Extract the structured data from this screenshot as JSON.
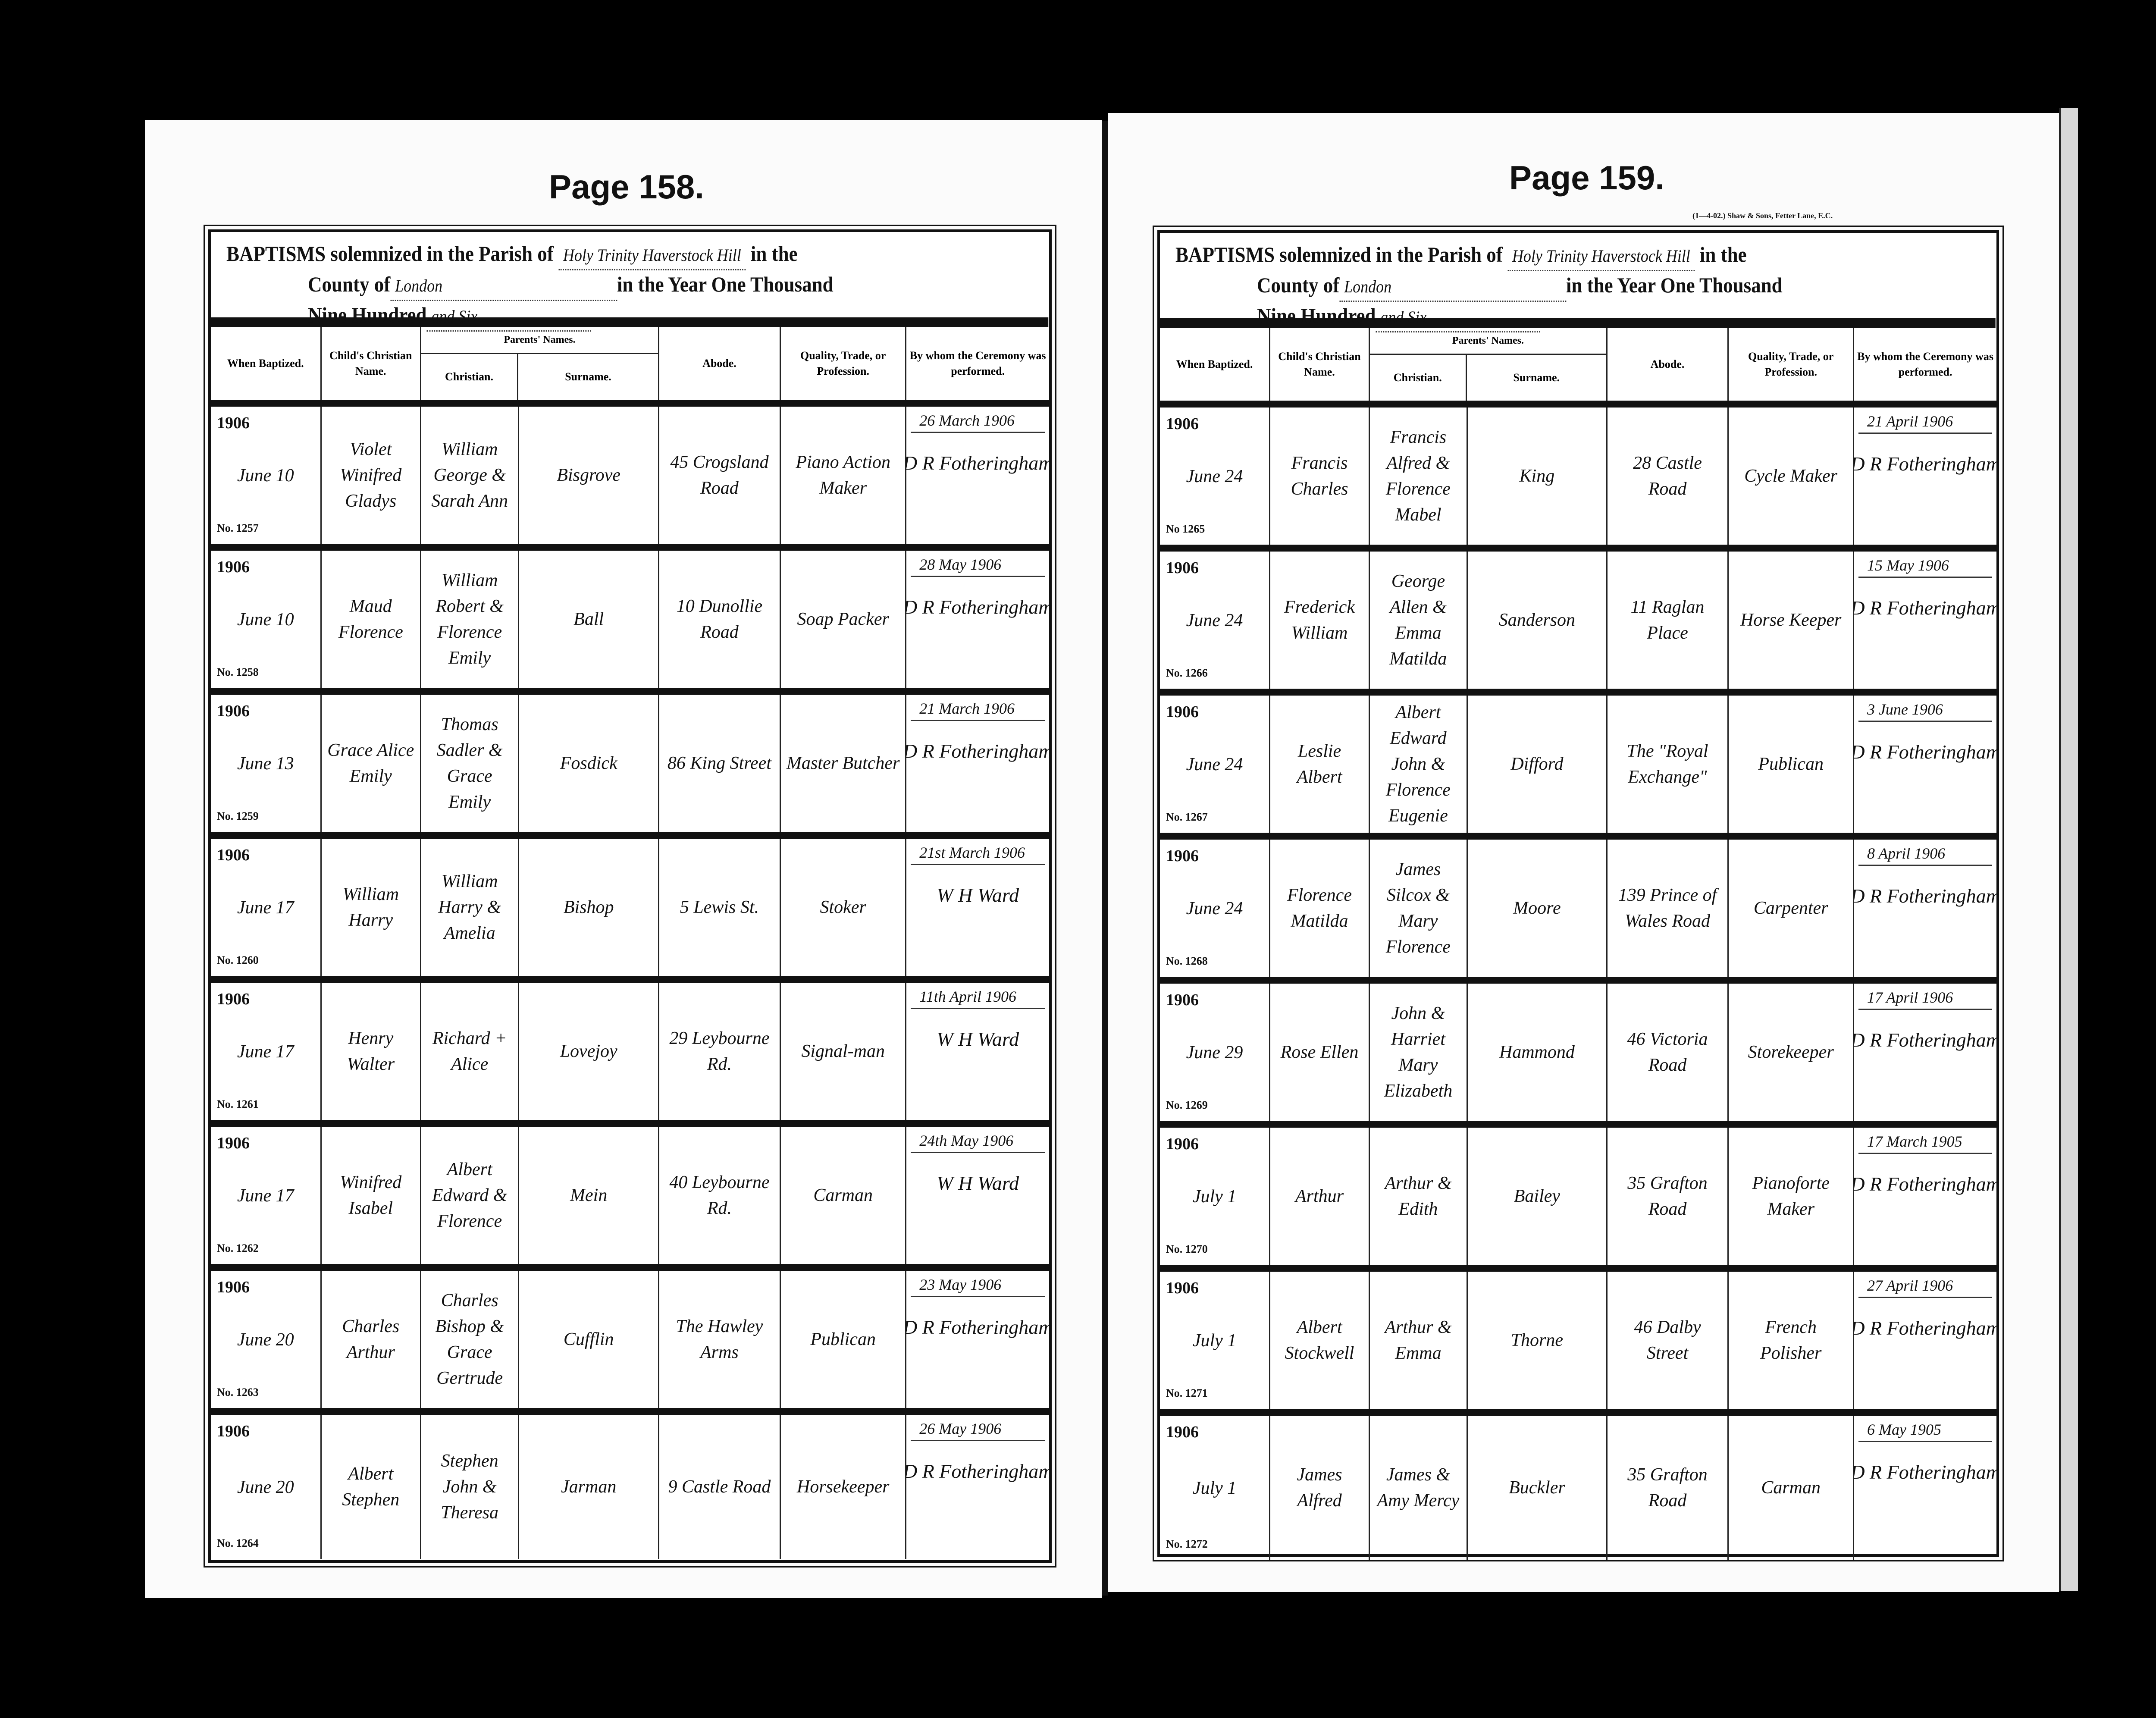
{
  "pages": [
    {
      "title": "Page 158.",
      "header": {
        "prefix": "BAPTISMS solemnized in the Parish of",
        "parish": "Holy Trinity Haverstock Hill",
        "in_the": "in the",
        "county_label": "County of",
        "county": "London",
        "year_label": "in the Year One Thousand",
        "nine_hundred": "Nine Hundred",
        "year": "and Six"
      },
      "columns": {
        "when": "When Baptized.",
        "child": "Child's Christian Name.",
        "parents": "Parents' Names.",
        "christian": "Christian.",
        "surname": "Surname.",
        "abode": "Abode.",
        "quality": "Quality, Trade, or Profession.",
        "by_whom": "By whom the Ceremony was performed."
      },
      "entries": [
        {
          "year": "1906",
          "date": "June 10",
          "no": "No. 1257",
          "child": "Violet Winifred Gladys",
          "parents_christian": "William George & Sarah Ann",
          "surname": "Bisgrove",
          "abode": "45 Crogsland Road",
          "profession": "Piano Action Maker",
          "cert_date": "26 March 1906",
          "minister": "D R Fotheringham"
        },
        {
          "year": "1906",
          "date": "June 10",
          "no": "No. 1258",
          "child": "Maud Florence",
          "parents_christian": "William Robert & Florence Emily",
          "surname": "Ball",
          "abode": "10 Dunollie Road",
          "profession": "Soap Packer",
          "cert_date": "28 May 1906",
          "minister": "D R Fotheringham"
        },
        {
          "year": "1906",
          "date": "June 13",
          "no": "No. 1259",
          "child": "Grace Alice Emily",
          "parents_christian": "Thomas Sadler & Grace Emily",
          "surname": "Fosdick",
          "abode": "86 King Street",
          "profession": "Master Butcher",
          "cert_date": "21 March 1906",
          "minister": "D R Fotheringham"
        },
        {
          "year": "1906",
          "date": "June 17",
          "no": "No. 1260",
          "child": "William Harry",
          "parents_christian": "William Harry & Amelia",
          "surname": "Bishop",
          "abode": "5 Lewis St.",
          "profession": "Stoker",
          "cert_date": "21st March 1906",
          "minister": "W H Ward"
        },
        {
          "year": "1906",
          "date": "June 17",
          "no": "No. 1261",
          "child": "Henry Walter",
          "parents_christian": "Richard + Alice",
          "surname": "Lovejoy",
          "abode": "29 Leybourne Rd.",
          "profession": "Signal-man",
          "cert_date": "11th April 1906",
          "minister": "W H Ward"
        },
        {
          "year": "1906",
          "date": "June 17",
          "no": "No. 1262",
          "child": "Winifred Isabel",
          "parents_christian": "Albert Edward & Florence",
          "surname": "Mein",
          "abode": "40 Leybourne Rd.",
          "profession": "Carman",
          "cert_date": "24th May 1906",
          "minister": "W H Ward"
        },
        {
          "year": "1906",
          "date": "June 20",
          "no": "No. 1263",
          "child": "Charles Arthur",
          "parents_christian": "Charles Bishop & Grace Gertrude",
          "surname": "Cufflin",
          "abode": "The Hawley Arms",
          "profession": "Publican",
          "cert_date": "23 May 1906",
          "minister": "D R Fotheringham"
        },
        {
          "year": "1906",
          "date": "June 20",
          "no": "No. 1264",
          "child": "Albert Stephen",
          "parents_christian": "Stephen John & Theresa",
          "surname": "Jarman",
          "abode": "9 Castle Road",
          "profession": "Horsekeeper",
          "cert_date": "26 May 1906",
          "minister": "D R Fotheringham"
        }
      ]
    },
    {
      "title": "Page 159.",
      "printer": "(1—4-02.) Shaw & Sons, Fetter Lane, E.C.",
      "header": {
        "prefix": "BAPTISMS solemnized in the Parish of",
        "parish": "Holy Trinity Haverstock Hill",
        "in_the": "in the",
        "county_label": "County of",
        "county": "London",
        "year_label": "in the Year One Thousand",
        "nine_hundred": "Nine Hundred",
        "year": "and Six"
      },
      "columns": {
        "when": "When Baptized.",
        "child": "Child's Christian Name.",
        "parents": "Parents' Names.",
        "christian": "Christian.",
        "surname": "Surname.",
        "abode": "Abode.",
        "quality": "Quality, Trade, or Profession.",
        "by_whom": "By whom the Ceremony was performed."
      },
      "entries": [
        {
          "year": "1906",
          "date": "June 24",
          "no": "No 1265",
          "child": "Francis Charles",
          "parents_christian": "Francis Alfred & Florence Mabel",
          "surname": "King",
          "abode": "28 Castle Road",
          "profession": "Cycle Maker",
          "cert_date": "21 April 1906",
          "minister": "D R Fotheringham"
        },
        {
          "year": "1906",
          "date": "June 24",
          "no": "No. 1266",
          "child": "Frederick William",
          "parents_christian": "George Allen & Emma Matilda",
          "surname": "Sanderson",
          "abode": "11 Raglan Place",
          "profession": "Horse Keeper",
          "cert_date": "15 May 1906",
          "minister": "D R Fotheringham"
        },
        {
          "year": "1906",
          "date": "June 24",
          "no": "No. 1267",
          "child": "Leslie Albert",
          "parents_christian": "Albert Edward John & Florence Eugenie",
          "surname": "Difford",
          "abode": "The \"Royal Exchange\"",
          "profession": "Publican",
          "cert_date": "3 June 1906",
          "minister": "D R Fotheringham"
        },
        {
          "year": "1906",
          "date": "June 24",
          "no": "No. 1268",
          "child": "Florence Matilda",
          "parents_christian": "James Silcox & Mary Florence",
          "surname": "Moore",
          "abode": "139 Prince of Wales Road",
          "profession": "Carpenter",
          "cert_date": "8 April 1906",
          "minister": "D R Fotheringham"
        },
        {
          "year": "1906",
          "date": "June 29",
          "no": "No. 1269",
          "child": "Rose Ellen",
          "parents_christian": "John & Harriet Mary Elizabeth",
          "surname": "Hammond",
          "abode": "46 Victoria Road",
          "profession": "Storekeeper",
          "cert_date": "17 April 1906",
          "minister": "D R Fotheringham"
        },
        {
          "year": "1906",
          "date": "July 1",
          "no": "No. 1270",
          "child": "Arthur",
          "parents_christian": "Arthur & Edith",
          "surname": "Bailey",
          "abode": "35 Grafton Road",
          "profession": "Pianoforte Maker",
          "cert_date": "17 March 1905",
          "minister": "D R Fotheringham"
        },
        {
          "year": "1906",
          "date": "July 1",
          "no": "No. 1271",
          "child": "Albert Stockwell",
          "parents_christian": "Arthur & Emma",
          "surname": "Thorne",
          "abode": "46 Dalby Street",
          "profession": "French Polisher",
          "cert_date": "27 April 1906",
          "minister": "D R Fotheringham"
        },
        {
          "year": "1906",
          "date": "July 1",
          "no": "No. 1272",
          "child": "James Alfred",
          "parents_christian": "James & Amy Mercy",
          "surname": "Buckler",
          "abode": "35 Grafton Road",
          "profession": "Carman",
          "cert_date": "6 May 1905",
          "minister": "D R Fotheringham"
        }
      ]
    }
  ]
}
